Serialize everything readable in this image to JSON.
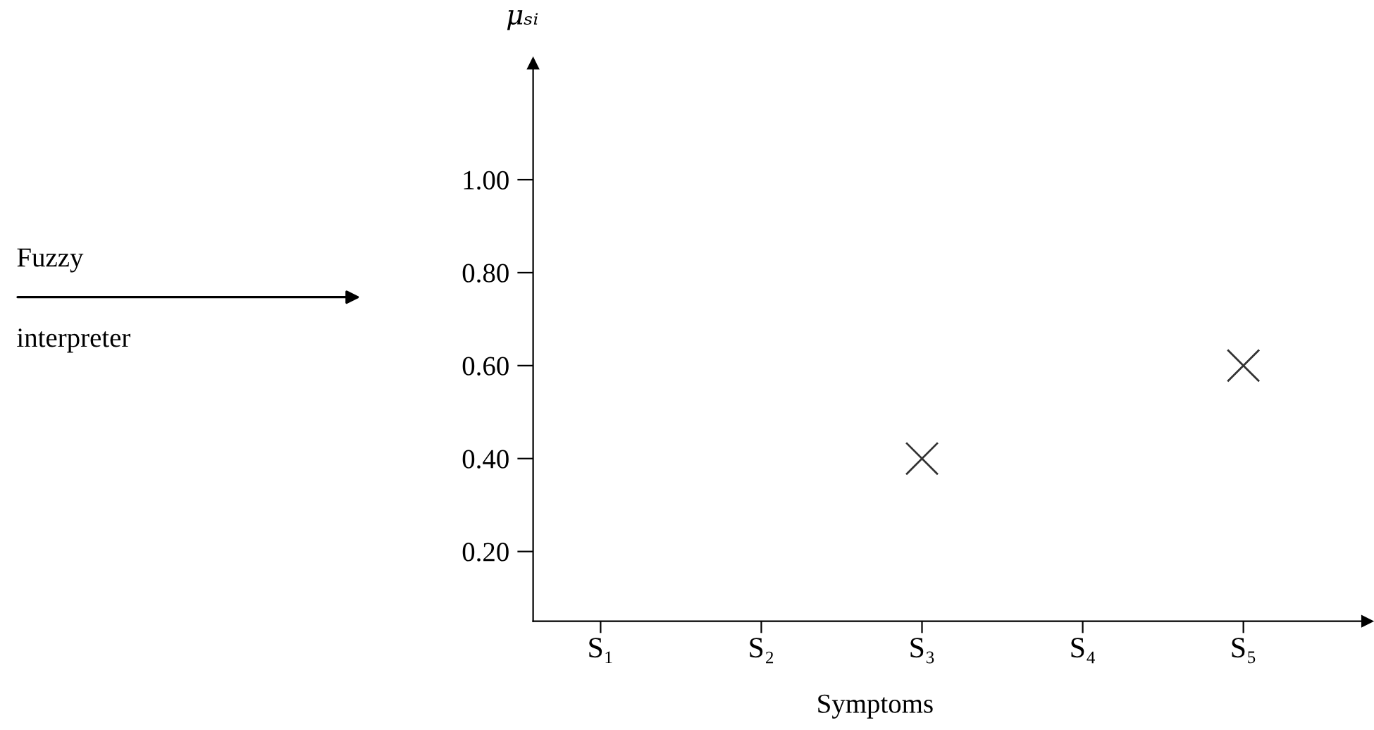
{
  "chart_data": {
    "type": "scatter",
    "categories": [
      "S₁",
      "S₂",
      "S₃",
      "S₄",
      "S₅"
    ],
    "series": [
      {
        "color": "#333333",
        "values": [
          null,
          null,
          0.4,
          null,
          0.6
        ]
      }
    ],
    "marker": "cross",
    "xlabel": "Symptoms",
    "ylabel": "μₛᵢ",
    "ylim": [
      0.05,
      1.25
    ],
    "yticks": [
      {
        "value": 0.2,
        "label": "0.20"
      },
      {
        "value": 0.4,
        "label": "0.40"
      },
      {
        "value": 0.6,
        "label": "0.60"
      },
      {
        "value": 0.8,
        "label": "0.80"
      },
      {
        "value": 1.0,
        "label": "1.00"
      }
    ],
    "annotations": [
      "Fuzzy",
      "interpreter"
    ],
    "grid": false,
    "legend": false
  }
}
